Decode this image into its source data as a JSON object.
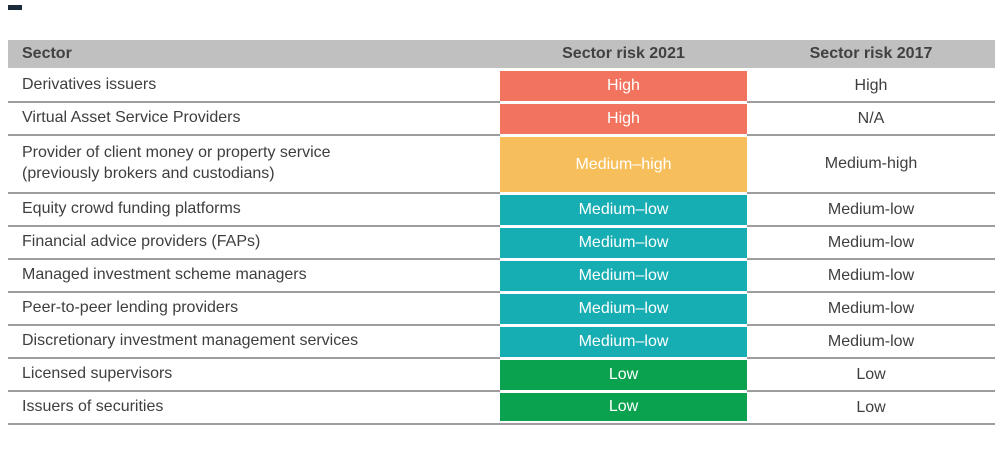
{
  "decoration": {
    "top_left_dash_color": "#1c2b39"
  },
  "table": {
    "columns": [
      {
        "label": "Sector"
      },
      {
        "label": "Sector risk 2021"
      },
      {
        "label": "Sector risk 2017"
      }
    ],
    "rows": [
      {
        "sector": "Derivatives issuers",
        "risk_2021": "High",
        "level": "high",
        "risk_2017": "High"
      },
      {
        "sector": "Virtual Asset Service Providers",
        "risk_2021": "High",
        "level": "high",
        "risk_2017": "N/A"
      },
      {
        "sector": "Provider of client money or property service\n(previously brokers and custodians)",
        "risk_2021": "Medium–high",
        "level": "medium_high",
        "risk_2017": "Medium-high"
      },
      {
        "sector": "Equity crowd funding platforms",
        "risk_2021": "Medium–low",
        "level": "medium_low",
        "risk_2017": "Medium-low"
      },
      {
        "sector": "Financial advice providers (FAPs)",
        "risk_2021": "Medium–low",
        "level": "medium_low",
        "risk_2017": "Medium-low"
      },
      {
        "sector": "Managed investment scheme managers",
        "risk_2021": "Medium–low",
        "level": "medium_low",
        "risk_2017": "Medium-low"
      },
      {
        "sector": "Peer-to-peer lending providers",
        "risk_2021": "Medium–low",
        "level": "medium_low",
        "risk_2017": "Medium-low"
      },
      {
        "sector": "Discretionary investment management services",
        "risk_2021": "Medium–low",
        "level": "medium_low",
        "risk_2017": "Medium-low"
      },
      {
        "sector": "Licensed supervisors",
        "risk_2021": "Low",
        "level": "low",
        "risk_2017": "Low"
      },
      {
        "sector": "Issuers of securities",
        "risk_2021": "Low",
        "level": "low",
        "risk_2017": "Low"
      }
    ],
    "colors": {
      "high": "#F2735E",
      "medium_high": "#F7BF5C",
      "medium_low": "#16ADB3",
      "low": "#0AA24F",
      "header_bg": "#C1C0C1",
      "divider": "#9D9D9D",
      "text": "#3E3E3D",
      "cell_text": "#FFFFFF"
    }
  }
}
